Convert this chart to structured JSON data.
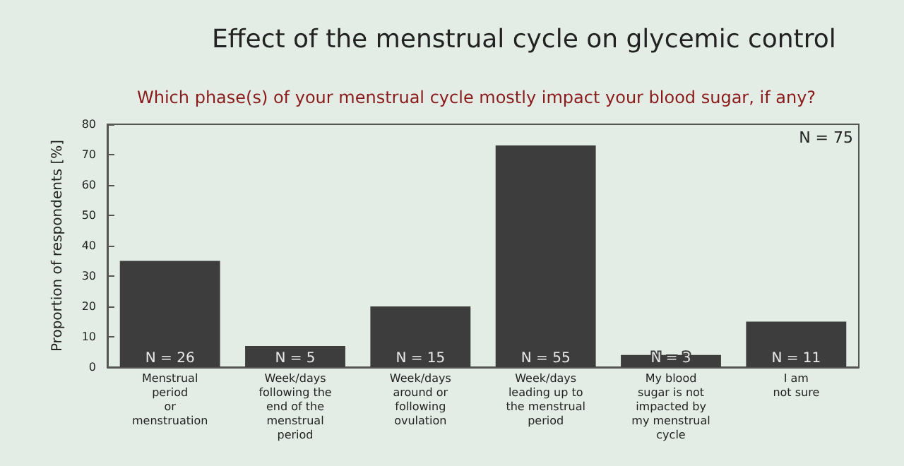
{
  "chart_data": {
    "type": "bar",
    "title": "Effect of the menstrual cycle on glycemic control",
    "subtitle": "Which phase(s) of your menstrual cycle mostly impact your blood sugar, if any?",
    "ylabel": "Proportion of respondents [%]",
    "categories": [
      "Menstrual\nperiod\nor\nmenstruation",
      "Week/days\nfollowing the\nend of the\nmenstrual\nperiod",
      "Week/days\naround or\nfollowing\novulation",
      "Week/days\nleading up to\nthe menstrual\nperiod",
      "My blood\nsugar is not\nimpacted by\nmy menstrual\ncycle",
      "I am\nnot sure"
    ],
    "values": [
      35,
      7,
      20,
      73,
      4,
      15
    ],
    "color": "#3d3d3d",
    "ylim": [
      0,
      80
    ],
    "yticks": [
      0,
      10,
      20,
      30,
      40,
      50,
      60,
      70,
      80
    ],
    "grid": false,
    "annotations": [
      "N = 75",
      {
        "text": "N = 26",
        "x": "Menstrual\nperiod\nor\nmenstruation",
        "y": 0
      },
      {
        "text": "N = 5",
        "x": "Week/days\nfollowing the\nend of the\nmenstrual\nperiod",
        "y": 0
      },
      {
        "text": "N = 15",
        "x": "Week/days\naround or\nfollowing\novulation",
        "y": 0
      },
      {
        "text": "N = 55",
        "x": "Week/days\nleading up to\nthe menstrual\nperiod",
        "y": 0
      },
      {
        "text": "N = 3",
        "x": "My blood\nsugar is not\nimpacted by\nmy menstrual\ncycle",
        "y": 0
      },
      {
        "text": "N = 11",
        "x": "I am\nnot sure",
        "y": 0
      }
    ]
  }
}
